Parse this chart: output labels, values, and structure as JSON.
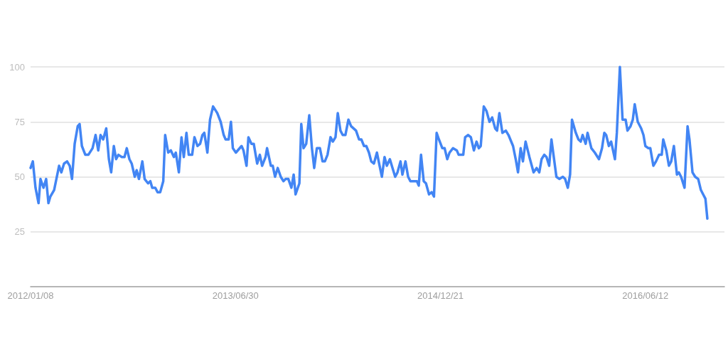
{
  "chart_data": {
    "type": "line",
    "marker": "none",
    "line_style": "solid",
    "grid": "y",
    "xlim": [
      "2012-01-08",
      "2017-01-06"
    ],
    "xticks": [
      {
        "value": "2012-01-08",
        "label": "2012/01/08"
      },
      {
        "value": "2013-06-30",
        "label": "2013/06/30"
      },
      {
        "value": "2014-12-21",
        "label": "2014/12/21"
      },
      {
        "value": "2016-06-12",
        "label": "2016/06/12"
      }
    ],
    "ylim": [
      0,
      100
    ],
    "yticks": [
      25,
      50,
      75,
      100
    ],
    "series": [
      {
        "color": "#4285f4",
        "x": [
          "2012-01-08",
          "2012-01-14",
          "2012-01-21",
          "2012-01-29",
          "2012-02-03",
          "2012-02-11",
          "2012-02-18",
          "2012-02-24",
          "2012-02-29",
          "2012-03-10",
          "2012-03-23",
          "2012-03-29",
          "2012-04-05",
          "2012-04-13",
          "2012-04-20",
          "2012-04-26",
          "2012-05-03",
          "2012-05-11",
          "2012-05-16",
          "2012-05-22",
          "2012-05-31",
          "2012-06-08",
          "2012-06-19",
          "2012-06-27",
          "2012-07-04",
          "2012-07-10",
          "2012-07-17",
          "2012-07-25",
          "2012-08-01",
          "2012-08-07",
          "2012-08-14",
          "2012-08-20",
          "2012-08-26",
          "2012-09-04",
          "2012-09-11",
          "2012-09-17",
          "2012-09-24",
          "2012-09-30",
          "2012-10-08",
          "2012-10-13",
          "2012-10-19",
          "2012-10-28",
          "2012-11-03",
          "2012-11-12",
          "2012-11-18",
          "2012-11-23",
          "2012-12-01",
          "2012-12-07",
          "2012-12-14",
          "2012-12-22",
          "2012-12-27",
          "2013-01-04",
          "2013-01-11",
          "2013-01-19",
          "2013-01-24",
          "2013-02-01",
          "2013-02-08",
          "2013-02-14",
          "2013-02-21",
          "2013-02-27",
          "2013-03-08",
          "2013-03-14",
          "2013-03-22",
          "2013-03-29",
          "2013-04-04",
          "2013-04-09",
          "2013-04-17",
          "2013-04-24",
          "2013-05-02",
          "2013-05-13",
          "2013-05-22",
          "2013-05-30",
          "2013-06-04",
          "2013-06-12",
          "2013-06-18",
          "2013-06-23",
          "2013-07-01",
          "2013-07-16",
          "2013-07-21",
          "2013-07-29",
          "2013-08-03",
          "2013-08-11",
          "2013-08-17",
          "2013-08-26",
          "2013-09-02",
          "2013-09-08",
          "2013-09-17",
          "2013-09-21",
          "2013-10-01",
          "2013-10-06",
          "2013-10-12",
          "2013-10-19",
          "2013-10-27",
          "2013-11-03",
          "2013-11-09",
          "2013-11-16",
          "2013-11-24",
          "2013-11-30",
          "2013-12-05",
          "2013-12-15",
          "2013-12-20",
          "2013-12-26",
          "2014-01-02",
          "2014-01-10",
          "2014-01-17",
          "2014-01-23",
          "2014-01-30",
          "2014-02-07",
          "2014-02-14",
          "2014-02-20",
          "2014-02-27",
          "2014-03-07",
          "2014-03-13",
          "2014-03-20",
          "2014-03-26",
          "2014-04-02",
          "2014-04-08",
          "2014-04-15",
          "2014-04-23",
          "2014-04-30",
          "2014-05-13",
          "2014-05-21",
          "2014-05-27",
          "2014-06-03",
          "2014-06-09",
          "2014-06-16",
          "2014-06-22",
          "2014-06-29",
          "2014-07-07",
          "2014-07-14",
          "2014-07-20",
          "2014-07-27",
          "2014-08-02",
          "2014-08-10",
          "2014-08-17",
          "2014-08-24",
          "2014-08-30",
          "2014-09-07",
          "2014-09-12",
          "2014-09-20",
          "2014-09-27",
          "2014-10-03",
          "2014-10-12",
          "2014-10-20",
          "2014-10-25",
          "2014-10-31",
          "2014-11-07",
          "2014-11-13",
          "2014-11-21",
          "2014-11-28",
          "2014-12-04",
          "2014-12-11",
          "2014-12-17",
          "2014-12-26",
          "2015-01-01",
          "2015-01-08",
          "2015-01-14",
          "2015-01-23",
          "2015-02-02",
          "2015-02-07",
          "2015-02-19",
          "2015-02-24",
          "2015-03-04",
          "2015-03-11",
          "2015-03-19",
          "2015-03-26",
          "2015-04-01",
          "2015-04-06",
          "2015-04-14",
          "2015-04-21",
          "2015-04-29",
          "2015-05-06",
          "2015-05-14",
          "2015-05-19",
          "2015-05-25",
          "2015-06-02",
          "2015-06-11",
          "2015-06-18",
          "2015-06-30",
          "2015-07-07",
          "2015-07-13",
          "2015-07-20",
          "2015-07-26",
          "2015-08-02",
          "2015-08-12",
          "2015-08-23",
          "2015-08-31",
          "2015-09-07",
          "2015-09-13",
          "2015-09-20",
          "2015-09-26",
          "2015-10-03",
          "2015-10-09",
          "2015-10-22",
          "2015-10-30",
          "2015-11-08",
          "2015-11-14",
          "2015-11-21",
          "2015-11-27",
          "2015-12-02",
          "2015-12-12",
          "2015-12-19",
          "2015-12-25",
          "2015-12-30",
          "2016-01-07",
          "2016-01-12",
          "2016-01-22",
          "2016-01-31",
          "2016-02-11",
          "2016-02-19",
          "2016-02-25",
          "2016-03-01",
          "2016-03-08",
          "2016-03-14",
          "2016-03-24",
          "2016-03-29",
          "2016-04-06",
          "2016-04-13",
          "2016-04-21",
          "2016-04-26",
          "2016-05-04",
          "2016-05-10",
          "2016-05-15",
          "2016-05-23",
          "2016-06-01",
          "2016-06-07",
          "2016-06-12",
          "2016-06-20",
          "2016-06-25",
          "2016-07-03",
          "2016-07-10",
          "2016-07-18",
          "2016-07-25",
          "2016-07-29",
          "2016-08-06",
          "2016-08-13",
          "2016-08-19",
          "2016-08-26",
          "2016-09-03",
          "2016-09-08",
          "2016-09-14",
          "2016-09-23",
          "2016-10-01",
          "2016-10-06",
          "2016-10-14",
          "2016-10-21",
          "2016-10-29",
          "2016-11-05",
          "2016-11-11",
          "2016-11-17",
          "2016-11-22"
        ],
        "values": [
          54,
          57,
          45,
          38,
          49,
          45,
          49,
          38,
          41,
          44,
          55,
          52,
          56,
          57,
          55,
          49,
          65,
          73,
          74,
          64,
          60,
          60,
          63,
          69,
          62,
          69,
          67,
          72,
          58,
          52,
          64,
          58,
          60,
          59,
          59,
          63,
          58,
          56,
          50,
          53,
          49,
          57,
          49,
          47,
          48,
          45,
          45,
          43,
          43,
          48,
          69,
          61,
          62,
          59,
          61,
          52,
          68,
          59,
          70,
          60,
          60,
          68,
          64,
          65,
          69,
          70,
          61,
          76,
          82,
          79,
          75,
          69,
          67,
          67,
          75,
          63,
          61,
          64,
          62,
          55,
          68,
          65,
          65,
          56,
          60,
          55,
          59,
          63,
          55,
          55,
          50,
          54,
          50,
          48,
          49,
          49,
          45,
          51,
          42,
          47,
          74,
          63,
          65,
          78,
          63,
          54,
          63,
          63,
          57,
          57,
          60,
          68,
          66,
          68,
          79,
          71,
          69,
          69,
          76,
          73,
          71,
          67,
          67,
          64,
          64,
          61,
          57,
          56,
          61,
          55,
          50,
          59,
          55,
          58,
          54,
          50,
          52,
          57,
          51,
          57,
          50,
          48,
          48,
          48,
          46,
          60,
          48,
          47,
          42,
          43,
          41,
          70,
          67,
          63,
          63,
          58,
          61,
          63,
          62,
          60,
          60,
          68,
          69,
          68,
          62,
          66,
          63,
          64,
          82,
          80,
          75,
          77,
          72,
          71,
          79,
          70,
          71,
          69,
          64,
          58,
          52,
          63,
          57,
          66,
          59,
          52,
          54,
          52,
          58,
          60,
          59,
          55,
          67,
          50,
          49,
          50,
          49,
          45,
          51,
          76,
          70,
          67,
          66,
          69,
          65,
          70,
          63,
          61,
          58,
          63,
          70,
          69,
          64,
          66,
          58,
          70,
          100,
          76,
          76,
          71,
          73,
          76,
          83,
          75,
          72,
          69,
          64,
          63,
          63,
          55,
          57,
          60,
          60,
          67,
          62,
          55,
          57,
          64,
          51,
          52,
          50,
          45,
          73,
          67,
          52,
          50,
          49,
          44,
          42,
          40,
          31
        ]
      }
    ]
  }
}
